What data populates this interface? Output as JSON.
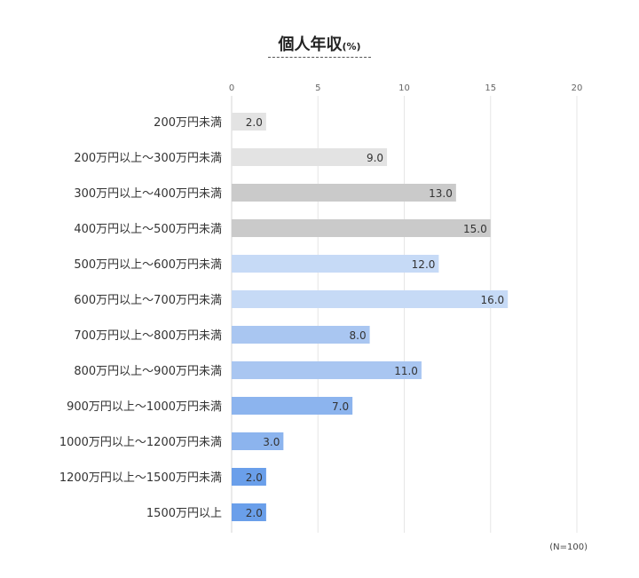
{
  "title": "個人年収",
  "title_unit": "(%)",
  "note": "(N=100)",
  "chart_data": {
    "type": "bar",
    "orientation": "horizontal",
    "title": "個人年収",
    "unit": "(%)",
    "xlim": [
      0,
      20
    ],
    "xticks": [
      0,
      5,
      10,
      15,
      20
    ],
    "grid": true,
    "value_format": "0.0",
    "categories": [
      "200万円未満",
      "200万円以上〜300万円未満",
      "300万円以上〜400万円未満",
      "400万円以上〜500万円未満",
      "500万円以上〜600万円未満",
      "600万円以上〜700万円未満",
      "700万円以上〜800万円未満",
      "800万円以上〜900万円未満",
      "900万円以上〜1000万円未満",
      "1000万円以上〜1200万円未満",
      "1200万円以上〜1500万円未満",
      "1500万円以上"
    ],
    "values": [
      2.0,
      9.0,
      13.0,
      15.0,
      12.0,
      16.0,
      8.0,
      11.0,
      7.0,
      3.0,
      2.0,
      2.0
    ],
    "colors": [
      "#e3e3e3",
      "#e3e3e3",
      "#cacaca",
      "#cacaca",
      "#c6daf6",
      "#c6daf6",
      "#a9c6f1",
      "#a9c6f1",
      "#8cb4ee",
      "#8cb4ee",
      "#6a9fea",
      "#6a9fea"
    ]
  }
}
